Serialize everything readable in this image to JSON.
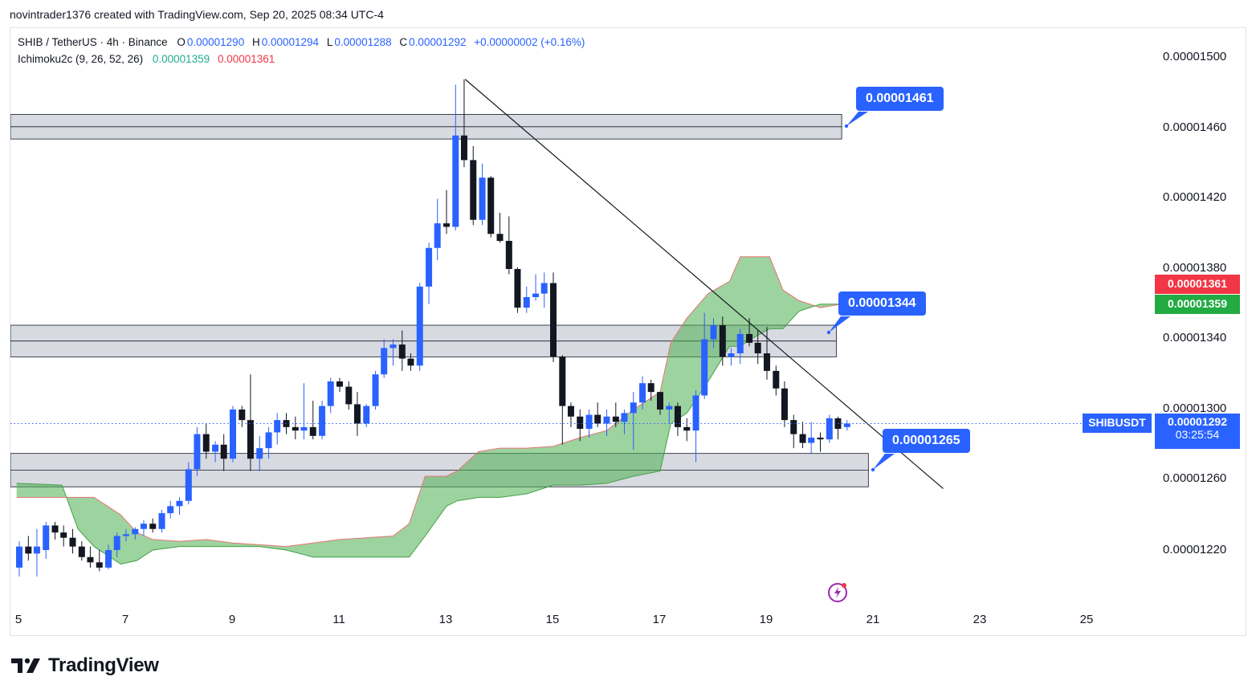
{
  "header": {
    "text": "novintrader1376 created with TradingView.com, Sep 20, 2025 08:34 UTC-4"
  },
  "legend": {
    "symbol": "SHIB / TetherUS · 4h · Binance",
    "o_label": "O",
    "o_value": "0.00001290",
    "h_label": "H",
    "h_value": "0.00001294",
    "l_label": "L",
    "l_value": "0.00001288",
    "c_label": "C",
    "c_value": "0.00001292",
    "change": "+0.00000002 (+0.16%)",
    "indicator": "Ichimoku2c (9, 26, 52, 26)",
    "ind_value1": "0.00001359",
    "ind_value2": "0.00001361"
  },
  "price_axis": {
    "labels": [
      "0.00001500",
      "0.00001460",
      "0.00001420",
      "0.00001380",
      "0.00001340",
      "0.00001300",
      "0.00001260",
      "0.00001220"
    ]
  },
  "price_tags": {
    "red_value": "0.00001361",
    "green_value": "0.00001359",
    "symbol_tag": "SHIBUSDT",
    "current_value": "0.00001292",
    "countdown": "03:25:54"
  },
  "callouts": {
    "top": "0.00001461",
    "middle": "0.00001344",
    "bottom": "0.00001265"
  },
  "date_axis": {
    "labels": [
      "5",
      "7",
      "9",
      "11",
      "13",
      "15",
      "17",
      "19",
      "21",
      "23",
      "25"
    ]
  },
  "footer": {
    "brand": "TradingView"
  },
  "colors": {
    "up": "#2962ff",
    "down": "#131722",
    "cloud": "#4caf50",
    "cloud_edge": "#e57373",
    "zone": "#d1d4dc",
    "tag_red": "#f23645",
    "tag_green": "#22ab42",
    "tag_blue": "#2962ff"
  },
  "chart_data": {
    "type": "candlestick",
    "timeframe": "4h",
    "y_range": [
      1.2e-05,
      1.52e-05
    ],
    "x_range": [
      4.95,
      25.4
    ],
    "candles": [
      {
        "t": 5.0,
        "o": 1.21e-05,
        "h": 1.225e-05,
        "l": 1.205e-05,
        "c": 1.222e-05
      },
      {
        "t": 5.17,
        "o": 1.222e-05,
        "h": 1.228e-05,
        "l": 1.214e-05,
        "c": 1.218e-05
      },
      {
        "t": 5.33,
        "o": 1.218e-05,
        "h": 1.232e-05,
        "l": 1.205e-05,
        "c": 1.222e-05
      },
      {
        "t": 5.5,
        "o": 1.22e-05,
        "h": 1.236e-05,
        "l": 1.215e-05,
        "c": 1.234e-05
      },
      {
        "t": 5.67,
        "o": 1.234e-05,
        "h": 1.236e-05,
        "l": 1.226e-05,
        "c": 1.23e-05
      },
      {
        "t": 5.83,
        "o": 1.23e-05,
        "h": 1.234e-05,
        "l": 1.222e-05,
        "c": 1.227e-05
      },
      {
        "t": 6.0,
        "o": 1.227e-05,
        "h": 1.232e-05,
        "l": 1.218e-05,
        "c": 1.222e-05
      },
      {
        "t": 6.17,
        "o": 1.222e-05,
        "h": 1.225e-05,
        "l": 1.214e-05,
        "c": 1.216e-05
      },
      {
        "t": 6.33,
        "o": 1.216e-05,
        "h": 1.222e-05,
        "l": 1.21e-05,
        "c": 1.213e-05
      },
      {
        "t": 6.5,
        "o": 1.213e-05,
        "h": 1.22e-05,
        "l": 1.208e-05,
        "c": 1.21e-05
      },
      {
        "t": 6.67,
        "o": 1.21e-05,
        "h": 1.223e-05,
        "l": 1.209e-05,
        "c": 1.22e-05
      },
      {
        "t": 6.83,
        "o": 1.22e-05,
        "h": 1.23e-05,
        "l": 1.216e-05,
        "c": 1.228e-05
      },
      {
        "t": 7.0,
        "o": 1.228e-05,
        "h": 1.232e-05,
        "l": 1.225e-05,
        "c": 1.229e-05
      },
      {
        "t": 7.17,
        "o": 1.229e-05,
        "h": 1.233e-05,
        "l": 1.226e-05,
        "c": 1.232e-05
      },
      {
        "t": 7.33,
        "o": 1.232e-05,
        "h": 1.237e-05,
        "l": 1.228e-05,
        "c": 1.235e-05
      },
      {
        "t": 7.5,
        "o": 1.235e-05,
        "h": 1.238e-05,
        "l": 1.23e-05,
        "c": 1.232e-05
      },
      {
        "t": 7.67,
        "o": 1.232e-05,
        "h": 1.243e-05,
        "l": 1.23e-05,
        "c": 1.241e-05
      },
      {
        "t": 7.83,
        "o": 1.241e-05,
        "h": 1.248e-05,
        "l": 1.238e-05,
        "c": 1.245e-05
      },
      {
        "t": 8.0,
        "o": 1.245e-05,
        "h": 1.25e-05,
        "l": 1.24e-05,
        "c": 1.248e-05
      },
      {
        "t": 8.17,
        "o": 1.248e-05,
        "h": 1.27e-05,
        "l": 1.246e-05,
        "c": 1.266e-05
      },
      {
        "t": 8.33,
        "o": 1.266e-05,
        "h": 1.29e-05,
        "l": 1.262e-05,
        "c": 1.286e-05
      },
      {
        "t": 8.5,
        "o": 1.286e-05,
        "h": 1.292e-05,
        "l": 1.272e-05,
        "c": 1.276e-05
      },
      {
        "t": 8.67,
        "o": 1.276e-05,
        "h": 1.282e-05,
        "l": 1.27e-05,
        "c": 1.28e-05
      },
      {
        "t": 8.83,
        "o": 1.28e-05,
        "h": 1.286e-05,
        "l": 1.265e-05,
        "c": 1.272e-05
      },
      {
        "t": 9.0,
        "o": 1.272e-05,
        "h": 1.302e-05,
        "l": 1.27e-05,
        "c": 1.3e-05
      },
      {
        "t": 9.17,
        "o": 1.3e-05,
        "h": 1.302e-05,
        "l": 1.29e-05,
        "c": 1.294e-05
      },
      {
        "t": 9.33,
        "o": 1.294e-05,
        "h": 1.32e-05,
        "l": 1.265e-05,
        "c": 1.272e-05
      },
      {
        "t": 9.5,
        "o": 1.272e-05,
        "h": 1.285e-05,
        "l": 1.265e-05,
        "c": 1.278e-05
      },
      {
        "t": 9.67,
        "o": 1.278e-05,
        "h": 1.29e-05,
        "l": 1.272e-05,
        "c": 1.287e-05
      },
      {
        "t": 9.83,
        "o": 1.287e-05,
        "h": 1.298e-05,
        "l": 1.28e-05,
        "c": 1.294e-05
      },
      {
        "t": 10.0,
        "o": 1.294e-05,
        "h": 1.298e-05,
        "l": 1.286e-05,
        "c": 1.29e-05
      },
      {
        "t": 10.17,
        "o": 1.29e-05,
        "h": 1.296e-05,
        "l": 1.283e-05,
        "c": 1.288e-05
      },
      {
        "t": 10.33,
        "o": 1.288e-05,
        "h": 1.315e-05,
        "l": 1.283e-05,
        "c": 1.29e-05
      },
      {
        "t": 10.5,
        "o": 1.29e-05,
        "h": 1.305e-05,
        "l": 1.283e-05,
        "c": 1.285e-05
      },
      {
        "t": 10.67,
        "o": 1.285e-05,
        "h": 1.305e-05,
        "l": 1.283e-05,
        "c": 1.302e-05
      },
      {
        "t": 10.83,
        "o": 1.302e-05,
        "h": 1.318e-05,
        "l": 1.298e-05,
        "c": 1.316e-05
      },
      {
        "t": 11.0,
        "o": 1.316e-05,
        "h": 1.318e-05,
        "l": 1.31e-05,
        "c": 1.313e-05
      },
      {
        "t": 11.17,
        "o": 1.313e-05,
        "h": 1.316e-05,
        "l": 1.3e-05,
        "c": 1.303e-05
      },
      {
        "t": 11.33,
        "o": 1.303e-05,
        "h": 1.31e-05,
        "l": 1.285e-05,
        "c": 1.292e-05
      },
      {
        "t": 11.5,
        "o": 1.292e-05,
        "h": 1.303e-05,
        "l": 1.29e-05,
        "c": 1.302e-05
      },
      {
        "t": 11.67,
        "o": 1.302e-05,
        "h": 1.322e-05,
        "l": 1.3e-05,
        "c": 1.32e-05
      },
      {
        "t": 11.83,
        "o": 1.32e-05,
        "h": 1.34e-05,
        "l": 1.318e-05,
        "c": 1.335e-05
      },
      {
        "t": 12.0,
        "o": 1.335e-05,
        "h": 1.34e-05,
        "l": 1.325e-05,
        "c": 1.337e-05
      },
      {
        "t": 12.17,
        "o": 1.337e-05,
        "h": 1.345e-05,
        "l": 1.322e-05,
        "c": 1.329e-05
      },
      {
        "t": 12.33,
        "o": 1.329e-05,
        "h": 1.332e-05,
        "l": 1.322e-05,
        "c": 1.325e-05
      },
      {
        "t": 12.5,
        "o": 1.325e-05,
        "h": 1.372e-05,
        "l": 1.322e-05,
        "c": 1.37e-05
      },
      {
        "t": 12.67,
        "o": 1.37e-05,
        "h": 1.395e-05,
        "l": 1.36e-05,
        "c": 1.392e-05
      },
      {
        "t": 12.83,
        "o": 1.392e-05,
        "h": 1.42e-05,
        "l": 1.385e-05,
        "c": 1.406e-05
      },
      {
        "t": 13.0,
        "o": 1.406e-05,
        "h": 1.425e-05,
        "l": 1.4e-05,
        "c": 1.404e-05
      },
      {
        "t": 13.17,
        "o": 1.404e-05,
        "h": 1.485e-05,
        "l": 1.402e-05,
        "c": 1.456e-05
      },
      {
        "t": 13.33,
        "o": 1.456e-05,
        "h": 1.488e-05,
        "l": 1.438e-05,
        "c": 1.442e-05
      },
      {
        "t": 13.5,
        "o": 1.442e-05,
        "h": 1.45e-05,
        "l": 1.405e-05,
        "c": 1.408e-05
      },
      {
        "t": 13.67,
        "o": 1.408e-05,
        "h": 1.44e-05,
        "l": 1.405e-05,
        "c": 1.432e-05
      },
      {
        "t": 13.83,
        "o": 1.432e-05,
        "h": 1.433e-05,
        "l": 1.398e-05,
        "c": 1.4e-05
      },
      {
        "t": 14.0,
        "o": 1.4e-05,
        "h": 1.412e-05,
        "l": 1.395e-05,
        "c": 1.396e-05
      },
      {
        "t": 14.17,
        "o": 1.396e-05,
        "h": 1.41e-05,
        "l": 1.377e-05,
        "c": 1.38e-05
      },
      {
        "t": 14.33,
        "o": 1.38e-05,
        "h": 1.381e-05,
        "l": 1.355e-05,
        "c": 1.358e-05
      },
      {
        "t": 14.5,
        "o": 1.358e-05,
        "h": 1.37e-05,
        "l": 1.355e-05,
        "c": 1.364e-05
      },
      {
        "t": 14.67,
        "o": 1.364e-05,
        "h": 1.377e-05,
        "l": 1.362e-05,
        "c": 1.366e-05
      },
      {
        "t": 14.83,
        "o": 1.366e-05,
        "h": 1.378e-05,
        "l": 1.358e-05,
        "c": 1.372e-05
      },
      {
        "t": 15.0,
        "o": 1.372e-05,
        "h": 1.378e-05,
        "l": 1.327e-05,
        "c": 1.33e-05
      },
      {
        "t": 15.17,
        "o": 1.33e-05,
        "h": 1.331e-05,
        "l": 1.28e-05,
        "c": 1.302e-05
      },
      {
        "t": 15.33,
        "o": 1.302e-05,
        "h": 1.304e-05,
        "l": 1.29e-05,
        "c": 1.296e-05
      },
      {
        "t": 15.5,
        "o": 1.296e-05,
        "h": 1.3e-05,
        "l": 1.282e-05,
        "c": 1.289e-05
      },
      {
        "t": 15.67,
        "o": 1.289e-05,
        "h": 1.3e-05,
        "l": 1.284e-05,
        "c": 1.297e-05
      },
      {
        "t": 15.83,
        "o": 1.297e-05,
        "h": 1.304e-05,
        "l": 1.29e-05,
        "c": 1.292e-05
      },
      {
        "t": 16.0,
        "o": 1.292e-05,
        "h": 1.3e-05,
        "l": 1.285e-05,
        "c": 1.296e-05
      },
      {
        "t": 16.17,
        "o": 1.296e-05,
        "h": 1.304e-05,
        "l": 1.29e-05,
        "c": 1.293e-05
      },
      {
        "t": 16.33,
        "o": 1.293e-05,
        "h": 1.3e-05,
        "l": 1.286e-05,
        "c": 1.298e-05
      },
      {
        "t": 16.5,
        "o": 1.298e-05,
        "h": 1.31e-05,
        "l": 1.277e-05,
        "c": 1.304e-05
      },
      {
        "t": 16.67,
        "o": 1.304e-05,
        "h": 1.319e-05,
        "l": 1.3e-05,
        "c": 1.315e-05
      },
      {
        "t": 16.83,
        "o": 1.315e-05,
        "h": 1.317e-05,
        "l": 1.305e-05,
        "c": 1.31e-05
      },
      {
        "t": 17.0,
        "o": 1.31e-05,
        "h": 1.31e-05,
        "l": 1.297e-05,
        "c": 1.3e-05
      },
      {
        "t": 17.17,
        "o": 1.3e-05,
        "h": 1.304e-05,
        "l": 1.292e-05,
        "c": 1.302e-05
      },
      {
        "t": 17.33,
        "o": 1.302e-05,
        "h": 1.304e-05,
        "l": 1.285e-05,
        "c": 1.29e-05
      },
      {
        "t": 17.5,
        "o": 1.29e-05,
        "h": 1.295e-05,
        "l": 1.282e-05,
        "c": 1.288e-05
      },
      {
        "t": 17.67,
        "o": 1.288e-05,
        "h": 1.311e-05,
        "l": 1.27e-05,
        "c": 1.308e-05
      },
      {
        "t": 17.83,
        "o": 1.308e-05,
        "h": 1.355e-05,
        "l": 1.306e-05,
        "c": 1.34e-05
      },
      {
        "t": 18.0,
        "o": 1.34e-05,
        "h": 1.352e-05,
        "l": 1.335e-05,
        "c": 1.348e-05
      },
      {
        "t": 18.17,
        "o": 1.348e-05,
        "h": 1.353e-05,
        "l": 1.325e-05,
        "c": 1.33e-05
      },
      {
        "t": 18.33,
        "o": 1.33e-05,
        "h": 1.335e-05,
        "l": 1.325e-05,
        "c": 1.332e-05
      },
      {
        "t": 18.5,
        "o": 1.332e-05,
        "h": 1.346e-05,
        "l": 1.326e-05,
        "c": 1.343e-05
      },
      {
        "t": 18.67,
        "o": 1.343e-05,
        "h": 1.352e-05,
        "l": 1.336e-05,
        "c": 1.338e-05
      },
      {
        "t": 18.83,
        "o": 1.338e-05,
        "h": 1.345e-05,
        "l": 1.326e-05,
        "c": 1.332e-05
      },
      {
        "t": 19.0,
        "o": 1.332e-05,
        "h": 1.347e-05,
        "l": 1.317e-05,
        "c": 1.322e-05
      },
      {
        "t": 19.17,
        "o": 1.322e-05,
        "h": 1.325e-05,
        "l": 1.308e-05,
        "c": 1.312e-05
      },
      {
        "t": 19.33,
        "o": 1.312e-05,
        "h": 1.316e-05,
        "l": 1.29e-05,
        "c": 1.294e-05
      },
      {
        "t": 19.5,
        "o": 1.294e-05,
        "h": 1.297e-05,
        "l": 1.278e-05,
        "c": 1.286e-05
      },
      {
        "t": 19.67,
        "o": 1.286e-05,
        "h": 1.293e-05,
        "l": 1.278e-05,
        "c": 1.281e-05
      },
      {
        "t": 19.83,
        "o": 1.281e-05,
        "h": 1.293e-05,
        "l": 1.275e-05,
        "c": 1.284e-05
      },
      {
        "t": 20.0,
        "o": 1.284e-05,
        "h": 1.287e-05,
        "l": 1.276e-05,
        "c": 1.283e-05
      },
      {
        "t": 20.17,
        "o": 1.283e-05,
        "h": 1.297e-05,
        "l": 1.281e-05,
        "c": 1.295e-05
      },
      {
        "t": 20.33,
        "o": 1.295e-05,
        "h": 1.296e-05,
        "l": 1.283e-05,
        "c": 1.289e-05
      },
      {
        "t": 20.5,
        "o": 1.29e-05,
        "h": 1.294e-05,
        "l": 1.288e-05,
        "c": 1.292e-05
      }
    ],
    "cloud": {
      "upper": [
        [
          4.95,
          1.25e-05
        ],
        [
          5.8,
          1.25e-05
        ],
        [
          6.4,
          1.25e-05
        ],
        [
          6.9,
          1.24e-05
        ],
        [
          7.2,
          1.23e-05
        ],
        [
          7.5,
          1.226e-05
        ],
        [
          8.0,
          1.225e-05
        ],
        [
          8.5,
          1.226e-05
        ],
        [
          9.0,
          1.224e-05
        ],
        [
          9.5,
          1.223e-05
        ],
        [
          10.0,
          1.222e-05
        ],
        [
          10.5,
          1.224e-05
        ],
        [
          11.0,
          1.226e-05
        ],
        [
          11.5,
          1.227e-05
        ],
        [
          12.0,
          1.228e-05
        ],
        [
          12.3,
          1.235e-05
        ],
        [
          12.6,
          1.262e-05
        ],
        [
          13.0,
          1.262e-05
        ],
        [
          13.2,
          1.265e-05
        ],
        [
          13.6,
          1.276e-05
        ],
        [
          14.0,
          1.278e-05
        ],
        [
          14.5,
          1.278e-05
        ],
        [
          15.0,
          1.279e-05
        ],
        [
          15.5,
          1.284e-05
        ],
        [
          16.0,
          1.288e-05
        ],
        [
          16.5,
          1.3e-05
        ],
        [
          17.0,
          1.31e-05
        ],
        [
          17.2,
          1.338e-05
        ],
        [
          17.5,
          1.352e-05
        ],
        [
          17.9,
          1.366e-05
        ],
        [
          18.3,
          1.373e-05
        ],
        [
          18.5,
          1.387e-05
        ],
        [
          18.7,
          1.387e-05
        ],
        [
          19.05,
          1.387e-05
        ],
        [
          19.3,
          1.368e-05
        ],
        [
          19.6,
          1.362e-05
        ],
        [
          20.0,
          1.358e-05
        ],
        [
          20.4,
          1.36e-05
        ]
      ],
      "lower": [
        [
          4.95,
          1.258e-05
        ],
        [
          5.8,
          1.257e-05
        ],
        [
          6.1,
          1.232e-05
        ],
        [
          6.4,
          1.222e-05
        ],
        [
          6.9,
          1.212e-05
        ],
        [
          7.2,
          1.214e-05
        ],
        [
          7.5,
          1.22e-05
        ],
        [
          8.0,
          1.222e-05
        ],
        [
          8.5,
          1.222e-05
        ],
        [
          9.0,
          1.222e-05
        ],
        [
          9.5,
          1.222e-05
        ],
        [
          10.0,
          1.22e-05
        ],
        [
          10.5,
          1.216e-05
        ],
        [
          11.0,
          1.216e-05
        ],
        [
          11.5,
          1.216e-05
        ],
        [
          12.0,
          1.216e-05
        ],
        [
          12.3,
          1.216e-05
        ],
        [
          12.6,
          1.228e-05
        ],
        [
          13.0,
          1.245e-05
        ],
        [
          13.2,
          1.248e-05
        ],
        [
          13.6,
          1.25e-05
        ],
        [
          14.0,
          1.25e-05
        ],
        [
          14.5,
          1.252e-05
        ],
        [
          15.0,
          1.257e-05
        ],
        [
          15.5,
          1.257e-05
        ],
        [
          16.0,
          1.258e-05
        ],
        [
          16.5,
          1.262e-05
        ],
        [
          17.0,
          1.265e-05
        ],
        [
          17.2,
          1.292e-05
        ],
        [
          17.5,
          1.298e-05
        ],
        [
          17.9,
          1.316e-05
        ],
        [
          18.3,
          1.336e-05
        ],
        [
          18.5,
          1.336e-05
        ],
        [
          18.7,
          1.34e-05
        ],
        [
          19.05,
          1.346e-05
        ],
        [
          19.3,
          1.346e-05
        ],
        [
          19.6,
          1.356e-05
        ],
        [
          20.0,
          1.36e-05
        ],
        [
          20.4,
          1.36e-05
        ]
      ]
    },
    "zones": [
      {
        "y_top": 1.468e-05,
        "y_bottom": 1.454e-05,
        "x_end": 20.4
      },
      {
        "y_top": 1.348e-05,
        "y_bottom": 1.33e-05,
        "x_end": 20.3
      },
      {
        "y_top": 1.275e-05,
        "y_bottom": 1.256e-05,
        "x_end": 20.9
      }
    ],
    "trendline": [
      [
        13.35,
        1.488e-05
      ],
      [
        22.3,
        1.255e-05
      ]
    ],
    "current_price": 1.292e-05
  }
}
